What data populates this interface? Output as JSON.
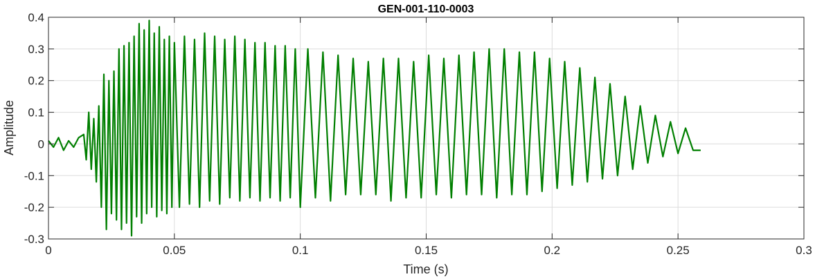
{
  "chart_data": {
    "type": "line",
    "title": "GEN-001-110-0003",
    "xlabel": "Time (s)",
    "ylabel": "Amplitude",
    "xlim": [
      0,
      0.3
    ],
    "ylim": [
      -0.3,
      0.4
    ],
    "xticks": [
      0,
      0.05,
      0.1,
      0.15,
      0.2,
      0.25,
      0.3
    ],
    "xtick_labels": [
      "0",
      "0.05",
      "0.1",
      "0.15",
      "0.2",
      "0.25",
      "0.3"
    ],
    "yticks": [
      -0.3,
      -0.2,
      -0.1,
      0,
      0.1,
      0.2,
      0.3,
      0.4
    ],
    "ytick_labels": [
      "-0.3",
      "-0.2",
      "-0.1",
      "0",
      "0.1",
      "0.2",
      "0.3",
      "0.4"
    ],
    "grid": true,
    "series": [
      {
        "color": "#007f00",
        "x": [
          0,
          0.002,
          0.004,
          0.006,
          0.008,
          0.01,
          0.012,
          0.014,
          0.015,
          0.016,
          0.017,
          0.018,
          0.019,
          0.02,
          0.021,
          0.022,
          0.023,
          0.024,
          0.025,
          0.026,
          0.027,
          0.028,
          0.029,
          0.03,
          0.031,
          0.032,
          0.033,
          0.034,
          0.035,
          0.036,
          0.037,
          0.038,
          0.039,
          0.04,
          0.041,
          0.042,
          0.043,
          0.044,
          0.045,
          0.046,
          0.047,
          0.048,
          0.049,
          0.05,
          0.052,
          0.054,
          0.056,
          0.058,
          0.06,
          0.062,
          0.064,
          0.066,
          0.068,
          0.07,
          0.072,
          0.074,
          0.076,
          0.078,
          0.08,
          0.082,
          0.084,
          0.086,
          0.088,
          0.09,
          0.092,
          0.094,
          0.096,
          0.098,
          0.1,
          0.103,
          0.106,
          0.109,
          0.112,
          0.115,
          0.118,
          0.121,
          0.124,
          0.127,
          0.13,
          0.133,
          0.136,
          0.139,
          0.142,
          0.145,
          0.148,
          0.151,
          0.154,
          0.157,
          0.16,
          0.163,
          0.166,
          0.169,
          0.172,
          0.175,
          0.178,
          0.181,
          0.184,
          0.187,
          0.19,
          0.193,
          0.196,
          0.199,
          0.202,
          0.205,
          0.208,
          0.211,
          0.214,
          0.217,
          0.22,
          0.223,
          0.226,
          0.229,
          0.232,
          0.235,
          0.238,
          0.241,
          0.244,
          0.247,
          0.25,
          0.253,
          0.256,
          0.259
        ],
        "y": [
          0.01,
          -0.01,
          0.02,
          -0.02,
          0.01,
          -0.01,
          0.02,
          0.03,
          -0.05,
          0.1,
          -0.08,
          0.08,
          -0.12,
          0.12,
          -0.2,
          0.22,
          -0.27,
          0.2,
          -0.22,
          0.23,
          -0.24,
          0.3,
          -0.27,
          0.31,
          -0.25,
          0.32,
          -0.29,
          0.34,
          -0.23,
          0.38,
          -0.25,
          0.36,
          -0.22,
          0.39,
          -0.2,
          0.35,
          -0.23,
          0.37,
          -0.21,
          0.33,
          -0.22,
          0.34,
          -0.2,
          0.32,
          -0.2,
          0.34,
          -0.19,
          0.33,
          -0.2,
          0.35,
          -0.18,
          0.34,
          -0.19,
          0.33,
          -0.17,
          0.34,
          -0.18,
          0.33,
          -0.17,
          0.32,
          -0.18,
          0.32,
          -0.17,
          0.31,
          -0.18,
          0.31,
          -0.17,
          0.3,
          -0.2,
          0.3,
          -0.17,
          0.29,
          -0.18,
          0.28,
          -0.16,
          0.27,
          -0.16,
          0.26,
          -0.16,
          0.27,
          -0.18,
          0.27,
          -0.17,
          0.26,
          -0.17,
          0.28,
          -0.16,
          0.27,
          -0.17,
          0.28,
          -0.16,
          0.29,
          -0.16,
          0.3,
          -0.17,
          0.3,
          -0.16,
          0.29,
          -0.16,
          0.29,
          -0.15,
          0.27,
          -0.14,
          0.26,
          -0.13,
          0.24,
          -0.12,
          0.21,
          -0.11,
          0.19,
          -0.1,
          0.15,
          -0.08,
          0.12,
          -0.06,
          0.09,
          -0.04,
          0.07,
          -0.03,
          0.05,
          -0.02,
          -0.02
        ]
      }
    ]
  }
}
